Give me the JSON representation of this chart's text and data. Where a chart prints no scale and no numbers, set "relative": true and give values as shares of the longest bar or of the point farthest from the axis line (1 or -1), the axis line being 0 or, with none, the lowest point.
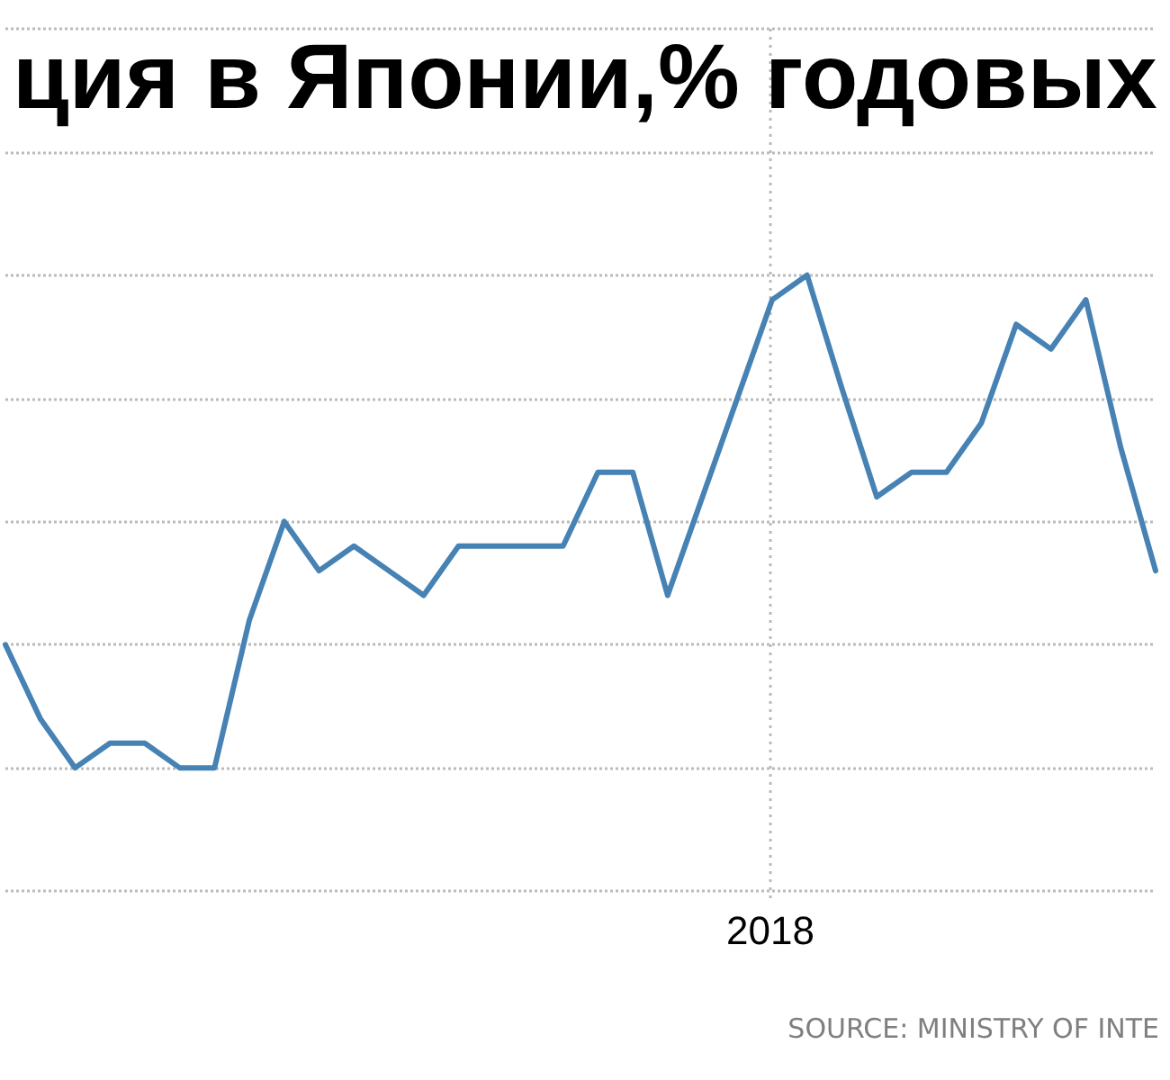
{
  "chart_data": {
    "type": "line",
    "title": "ция в Японии,% годовых",
    "annotations": [
      "2018",
      "SOURCE: MINISTRY OF INTE"
    ],
    "categories": [
      null,
      null,
      null,
      null,
      null,
      null,
      null,
      null,
      null,
      null,
      null,
      null,
      null,
      null,
      null,
      null,
      null,
      null,
      null,
      null,
      null,
      null,
      null,
      null,
      null,
      null,
      null,
      null,
      null,
      null,
      null,
      null,
      null,
      null
    ],
    "values": [
      0.25,
      0.1,
      0,
      0.05,
      0.05,
      0,
      0,
      0.3,
      0.5,
      0.4,
      0.45,
      0.4,
      0.35,
      0.45,
      0.45,
      0.45,
      0.45,
      0.6,
      0.6,
      0.35,
      0.55,
      0.75,
      0.95,
      1,
      0.77,
      0.55,
      0.6,
      0.6,
      0.7,
      0.9,
      0.85,
      0.95,
      0.65,
      0.4
    ],
    "color": "#4682b4",
    "relative": true,
    "grid": true,
    "marker": "none",
    "line_style": "solid"
  }
}
